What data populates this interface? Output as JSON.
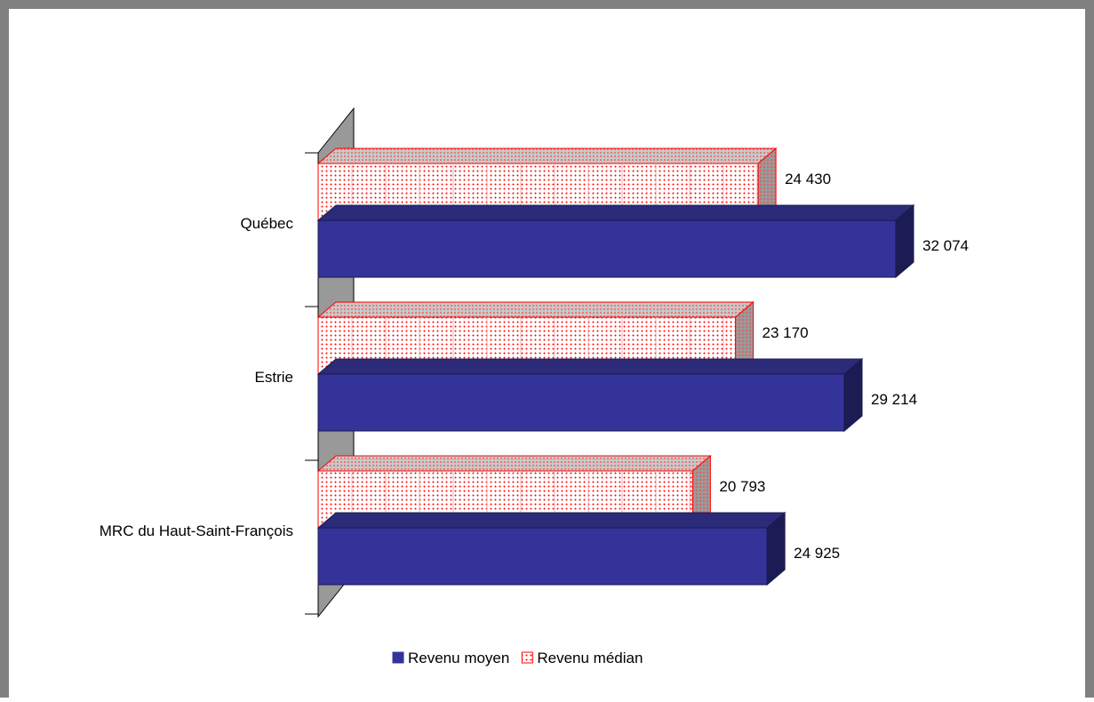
{
  "chart_data": {
    "type": "bar",
    "orientation": "horizontal",
    "three_d": true,
    "title": "",
    "xlabel": "",
    "ylabel": "",
    "categories": [
      "Québec",
      "Estrie",
      "MRC du Haut-Saint-François"
    ],
    "series": [
      {
        "name": "Revenu moyen",
        "values": [
          32074,
          29214,
          24925
        ],
        "color": "#333399",
        "pattern": "solid"
      },
      {
        "name": "Revenu médian",
        "values": [
          24430,
          23170,
          20793
        ],
        "color": "#ff0000",
        "pattern": "dotted"
      }
    ],
    "data_labels": {
      "Revenu moyen": [
        "32 074",
        "29 214",
        "24 925"
      ],
      "Revenu médian": [
        "24 430",
        "23 170",
        "20 793"
      ]
    },
    "value_axis_visible": false,
    "grid": false,
    "legend": {
      "position": "bottom"
    }
  }
}
